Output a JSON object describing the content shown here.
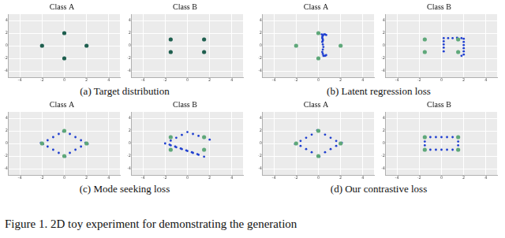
{
  "caption": "Figure 1. 2D toy experiment for demonstrating the generation",
  "subcaptions": [
    "(a) Target distribution",
    "(b) Latent regression loss",
    "(c) Mode seeking loss",
    "(d) Our contrastive loss"
  ],
  "chart_data": [
    {
      "type": "scatter",
      "title": "Class A",
      "xlim": [
        -5,
        5
      ],
      "ylim": [
        -5,
        5
      ],
      "xticks": [
        -4,
        -2,
        0,
        2,
        4
      ],
      "yticks": [
        -4,
        -2,
        0,
        2,
        4
      ],
      "grid": true,
      "series": [
        {
          "color": "#1f5f4f",
          "marker": "circle",
          "x": [
            -2,
            0,
            2,
            0
          ],
          "values": [
            0,
            2,
            0,
            -2
          ]
        }
      ]
    },
    {
      "type": "scatter",
      "title": "Class B",
      "xlim": [
        -5,
        5
      ],
      "ylim": [
        -5,
        5
      ],
      "xticks": [
        -4,
        -2,
        0,
        2,
        4
      ],
      "yticks": [
        -4,
        -2,
        0,
        2,
        4
      ],
      "grid": true,
      "series": [
        {
          "color": "#1f5f4f",
          "marker": "circle",
          "x": [
            -1.5,
            1.5,
            -1.5,
            1.5
          ],
          "values": [
            1,
            1,
            -1,
            -1
          ]
        }
      ]
    },
    {
      "type": "scatter",
      "title": "Class A",
      "xlim": [
        -5,
        5
      ],
      "ylim": [
        -5,
        5
      ],
      "xticks": [
        -4,
        -2,
        0,
        2,
        4
      ],
      "yticks": [
        -4,
        -2,
        0,
        2,
        4
      ],
      "grid": true,
      "series": [
        {
          "color": "#5fa87a",
          "marker": "circle",
          "x": [
            -2,
            0,
            2,
            0
          ],
          "values": [
            0,
            2,
            0,
            -2
          ]
        },
        {
          "color": "#1f3fd0",
          "marker": "dot",
          "x": [
            0.3,
            0.35,
            0.4,
            0.35,
            0.4,
            0.45,
            0.4,
            0.35,
            0.4,
            0.45,
            0.4,
            0.35,
            0.4,
            0.5,
            0.6,
            0.7,
            0.5,
            0.6,
            0.7
          ],
          "values": [
            1.8,
            1.4,
            1.0,
            0.6,
            0.2,
            -0.2,
            -0.6,
            -1.0,
            -1.3,
            -1.6,
            1.6,
            1.2,
            0.8,
            1.8,
            1.8,
            1.7,
            -1.6,
            -1.6,
            -1.5
          ]
        }
      ]
    },
    {
      "type": "scatter",
      "title": "Class B",
      "xlim": [
        -5,
        5
      ],
      "ylim": [
        -5,
        5
      ],
      "xticks": [
        -4,
        -2,
        0,
        2,
        4
      ],
      "yticks": [
        -4,
        -2,
        0,
        2,
        4
      ],
      "grid": true,
      "series": [
        {
          "color": "#5fa87a",
          "marker": "circle",
          "x": [
            -1.5,
            1.5,
            -1.5,
            1.5
          ],
          "values": [
            1,
            1,
            -1,
            -1
          ]
        },
        {
          "color": "#1f3fd0",
          "marker": "dot",
          "x": [
            0.2,
            0.2,
            0.2,
            0.2,
            0.2,
            0.6,
            1.0,
            1.4,
            1.8,
            2.0,
            2.0,
            2.0,
            2.0,
            2.0,
            2.0,
            1.8
          ],
          "values": [
            1.2,
            0.7,
            0.2,
            -0.3,
            -0.9,
            1.2,
            1.2,
            1.25,
            1.2,
            1.1,
            0.6,
            0.1,
            -0.4,
            -0.9,
            -1.4,
            -1.6
          ]
        }
      ]
    },
    {
      "type": "scatter",
      "title": "Class A",
      "xlim": [
        -5,
        5
      ],
      "ylim": [
        -5,
        5
      ],
      "xticks": [
        -4,
        -2,
        0,
        2,
        4
      ],
      "yticks": [
        -4,
        -2,
        0,
        2,
        4
      ],
      "grid": true,
      "series": [
        {
          "color": "#5fa87a",
          "marker": "circle",
          "x": [
            -2,
            0,
            2,
            0
          ],
          "values": [
            0,
            2,
            0,
            -2
          ]
        },
        {
          "color": "#1f3fd0",
          "marker": "dot",
          "x": [
            -2,
            -1.5,
            -1,
            -0.5,
            0,
            0.5,
            1,
            1.5,
            2,
            1.5,
            1,
            0.5,
            0,
            -0.5,
            -1,
            -1.5,
            -2.1,
            2.1,
            0.1,
            -0.1,
            -1.9,
            1.9
          ],
          "values": [
            0,
            0.5,
            1,
            1.5,
            2,
            1.5,
            1,
            0.5,
            0,
            -0.5,
            -1,
            -1.5,
            -2,
            -1.5,
            -1,
            -0.5,
            0.1,
            -0.1,
            -2.1,
            1.9,
            -0.1,
            0.1
          ]
        }
      ]
    },
    {
      "type": "scatter",
      "title": "Class B",
      "xlim": [
        -5,
        5
      ],
      "ylim": [
        -5,
        5
      ],
      "xticks": [
        -4,
        -2,
        0,
        2,
        4
      ],
      "yticks": [
        -4,
        -2,
        0,
        2,
        4
      ],
      "grid": true,
      "series": [
        {
          "color": "#5fa87a",
          "marker": "circle",
          "x": [
            -1.5,
            1.5,
            -1.5,
            1.5
          ],
          "values": [
            1,
            1,
            -1,
            -1
          ]
        },
        {
          "color": "#1f3fd0",
          "marker": "dot",
          "x": [
            -2,
            -1.5,
            -1,
            -0.5,
            0,
            0.5,
            1,
            1.5,
            2,
            -1.5,
            -1,
            -0.5,
            0,
            0.5,
            1,
            1.5,
            -1.6,
            -1.1,
            -0.6,
            -0.1,
            0.4,
            0.9
          ],
          "values": [
            0,
            0.45,
            0.9,
            1.35,
            1.8,
            1.5,
            1.2,
            0.9,
            0.6,
            -0.3,
            -0.6,
            -0.9,
            -1.2,
            -1.5,
            -1.8,
            -2.1,
            -0.2,
            -0.5,
            -0.8,
            -1.1,
            -1.4,
            -1.7
          ]
        }
      ]
    },
    {
      "type": "scatter",
      "title": "Class A",
      "xlim": [
        -5,
        5
      ],
      "ylim": [
        -5,
        5
      ],
      "xticks": [
        -4,
        -2,
        0,
        2,
        4
      ],
      "yticks": [
        -4,
        -2,
        0,
        2,
        4
      ],
      "grid": true,
      "series": [
        {
          "color": "#5fa87a",
          "marker": "circle",
          "x": [
            -2,
            0,
            2,
            0
          ],
          "values": [
            0,
            2,
            0,
            -2
          ]
        },
        {
          "color": "#1f3fd0",
          "marker": "dot",
          "x": [
            -2,
            -1.6,
            -1.1,
            -0.6,
            0,
            0.6,
            1.1,
            1.6,
            2,
            1.6,
            1.1,
            0.6,
            0,
            -0.6,
            -1.1,
            -1.6,
            -2.1,
            2.1,
            0.1,
            -0.1
          ],
          "values": [
            0,
            0.4,
            0.9,
            1.4,
            2,
            1.4,
            0.9,
            0.4,
            0,
            -0.4,
            -0.9,
            -1.4,
            -2,
            -1.4,
            -0.9,
            -0.4,
            -0.1,
            0.1,
            -2.1,
            2.1
          ]
        }
      ]
    },
    {
      "type": "scatter",
      "title": "Class B",
      "xlim": [
        -5,
        5
      ],
      "ylim": [
        -5,
        5
      ],
      "xticks": [
        -4,
        -2,
        0,
        2,
        4
      ],
      "yticks": [
        -4,
        -2,
        0,
        2,
        4
      ],
      "grid": true,
      "series": [
        {
          "color": "#5fa87a",
          "marker": "circle",
          "x": [
            -1.5,
            1.5,
            -1.5,
            1.5
          ],
          "values": [
            1,
            1,
            -1,
            -1
          ]
        },
        {
          "color": "#1f3fd0",
          "marker": "dot",
          "x": [
            -1.5,
            -1,
            -0.5,
            0,
            0.5,
            1,
            1.5,
            1.5,
            1.5,
            1.5,
            1,
            0.5,
            0,
            -0.5,
            -1,
            -1.5,
            -1.5,
            -1.5
          ],
          "values": [
            1,
            1,
            1,
            1,
            1,
            1,
            1,
            0.3,
            -0.3,
            -1,
            -1,
            -1,
            -1,
            -1,
            -1,
            -1,
            -0.3,
            0.3
          ]
        }
      ]
    }
  ]
}
